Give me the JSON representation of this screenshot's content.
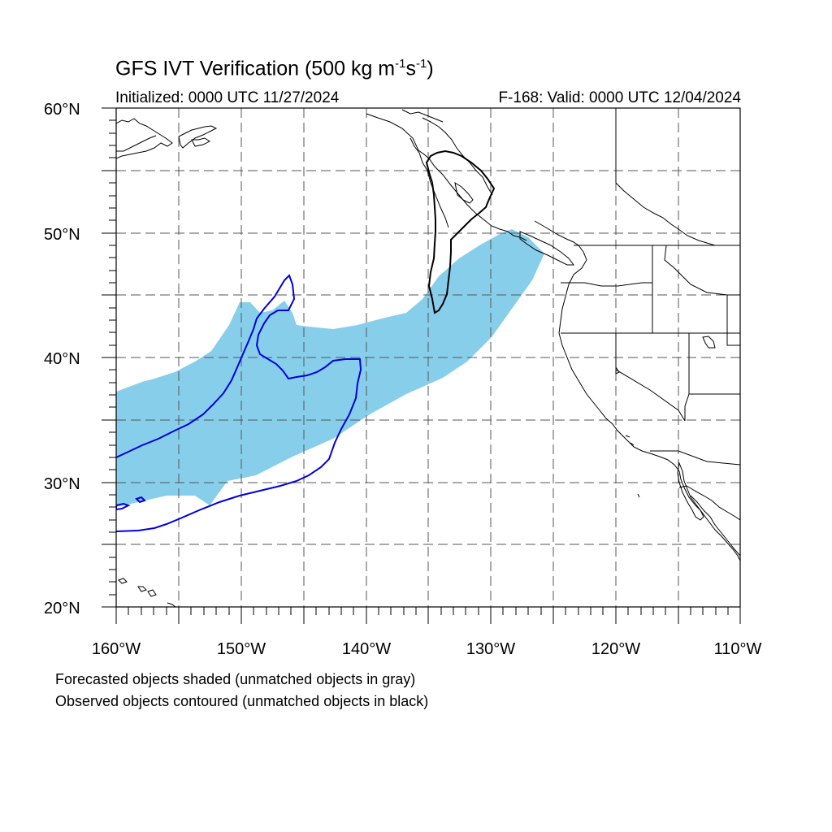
{
  "title": {
    "main": "GFS IVT Verification (500 kg m",
    "sup1": "-1",
    "mid": "s",
    "sup2": "-1",
    "end": ")"
  },
  "initialized": "Initialized: 0000 UTC 11/27/2024",
  "valid": "F-168: Valid: 0000 UTC 12/04/2024",
  "lat_labels": [
    "60°N",
    "50°N",
    "40°N",
    "30°N",
    "20°N"
  ],
  "lon_labels": [
    "160°W",
    "150°W",
    "140°W",
    "130°W",
    "120°W",
    "110°W"
  ],
  "footnotes": [
    "Forecasted objects shaded (unmatched objects in gray)",
    "Observed objects contoured (unmatched objects in black)"
  ],
  "map": {
    "lon_range": [
      -160,
      -110
    ],
    "lat_range": [
      20,
      60
    ],
    "colors": {
      "forecast_shade": "#87CEEB",
      "matched_observed_contour": "#0000E0",
      "unmatched_observed_contour": "#000000",
      "coastline": "#000000",
      "gridline": "#555555"
    }
  }
}
